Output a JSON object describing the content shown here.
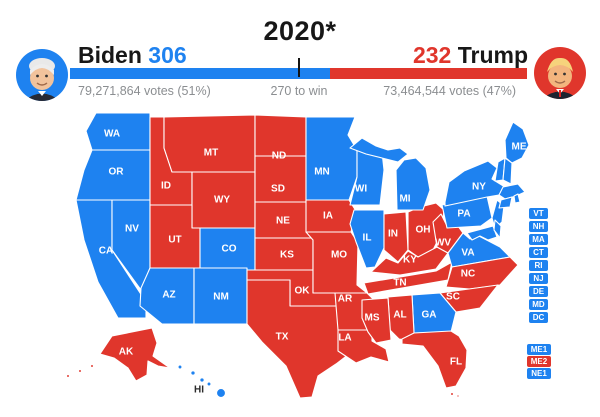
{
  "title": "2020*",
  "colors": {
    "dem": "#1e82f0",
    "rep": "#e0362c",
    "tick": "#141414",
    "muted_text": "#8b8e91",
    "heading_text": "#171717"
  },
  "header": {
    "left": {
      "name": "Biden",
      "ev": "306",
      "votes": "79,271,864 votes (51%)"
    },
    "right": {
      "name": "Trump",
      "ev": "232",
      "votes": "73,464,544 votes (47%)"
    },
    "tick_label": "270 to win",
    "bar": {
      "dem_pct": 56.9,
      "tick_pct": 50.2
    }
  },
  "map": {
    "states": [
      {
        "abbr": "WA",
        "party": "dem"
      },
      {
        "abbr": "OR",
        "party": "dem"
      },
      {
        "abbr": "CA",
        "party": "dem"
      },
      {
        "abbr": "NV",
        "party": "dem"
      },
      {
        "abbr": "ID",
        "party": "rep"
      },
      {
        "abbr": "MT",
        "party": "rep"
      },
      {
        "abbr": "WY",
        "party": "rep"
      },
      {
        "abbr": "UT",
        "party": "rep"
      },
      {
        "abbr": "CO",
        "party": "dem"
      },
      {
        "abbr": "AZ",
        "party": "dem"
      },
      {
        "abbr": "NM",
        "party": "dem"
      },
      {
        "abbr": "ND",
        "party": "rep"
      },
      {
        "abbr": "SD",
        "party": "rep"
      },
      {
        "abbr": "NE",
        "party": "rep"
      },
      {
        "abbr": "KS",
        "party": "rep"
      },
      {
        "abbr": "OK",
        "party": "rep"
      },
      {
        "abbr": "TX",
        "party": "rep"
      },
      {
        "abbr": "MN",
        "party": "dem"
      },
      {
        "abbr": "IA",
        "party": "rep"
      },
      {
        "abbr": "MO",
        "party": "rep"
      },
      {
        "abbr": "AR",
        "party": "rep"
      },
      {
        "abbr": "LA",
        "party": "rep"
      },
      {
        "abbr": "WI",
        "party": "dem"
      },
      {
        "abbr": "IL",
        "party": "dem"
      },
      {
        "abbr": "IN",
        "party": "rep"
      },
      {
        "abbr": "OH",
        "party": "rep"
      },
      {
        "abbr": "MI",
        "party": "dem"
      },
      {
        "abbr": "KY",
        "party": "rep"
      },
      {
        "abbr": "TN",
        "party": "rep"
      },
      {
        "abbr": "WV",
        "party": "rep"
      },
      {
        "abbr": "VA",
        "party": "dem"
      },
      {
        "abbr": "NC",
        "party": "rep"
      },
      {
        "abbr": "SC",
        "party": "rep"
      },
      {
        "abbr": "GA",
        "party": "dem"
      },
      {
        "abbr": "AL",
        "party": "rep"
      },
      {
        "abbr": "MS",
        "party": "rep"
      },
      {
        "abbr": "FL",
        "party": "rep"
      },
      {
        "abbr": "PA",
        "party": "dem"
      },
      {
        "abbr": "NY",
        "party": "dem"
      },
      {
        "abbr": "NJ",
        "party": "dem"
      },
      {
        "abbr": "MD",
        "party": "dem"
      },
      {
        "abbr": "DE",
        "party": "dem"
      },
      {
        "abbr": "ME",
        "party": "dem"
      },
      {
        "abbr": "VT",
        "party": "dem"
      },
      {
        "abbr": "NH",
        "party": "dem"
      },
      {
        "abbr": "MA",
        "party": "dem"
      },
      {
        "abbr": "CT",
        "party": "dem"
      },
      {
        "abbr": "RI",
        "party": "dem"
      },
      {
        "abbr": "AK",
        "party": "rep"
      },
      {
        "abbr": "HI",
        "party": "dem"
      }
    ]
  },
  "side_boxes": [
    {
      "label": "VT",
      "party": "dem"
    },
    {
      "label": "NH",
      "party": "dem"
    },
    {
      "label": "MA",
      "party": "dem"
    },
    {
      "label": "CT",
      "party": "dem"
    },
    {
      "label": "RI",
      "party": "dem"
    },
    {
      "label": "NJ",
      "party": "dem"
    },
    {
      "label": "DE",
      "party": "dem"
    },
    {
      "label": "MD",
      "party": "dem"
    },
    {
      "label": "DC",
      "party": "dem"
    },
    {
      "label": "ME1",
      "party": "dem"
    },
    {
      "label": "ME2",
      "party": "rep"
    },
    {
      "label": "NE1",
      "party": "dem"
    }
  ]
}
